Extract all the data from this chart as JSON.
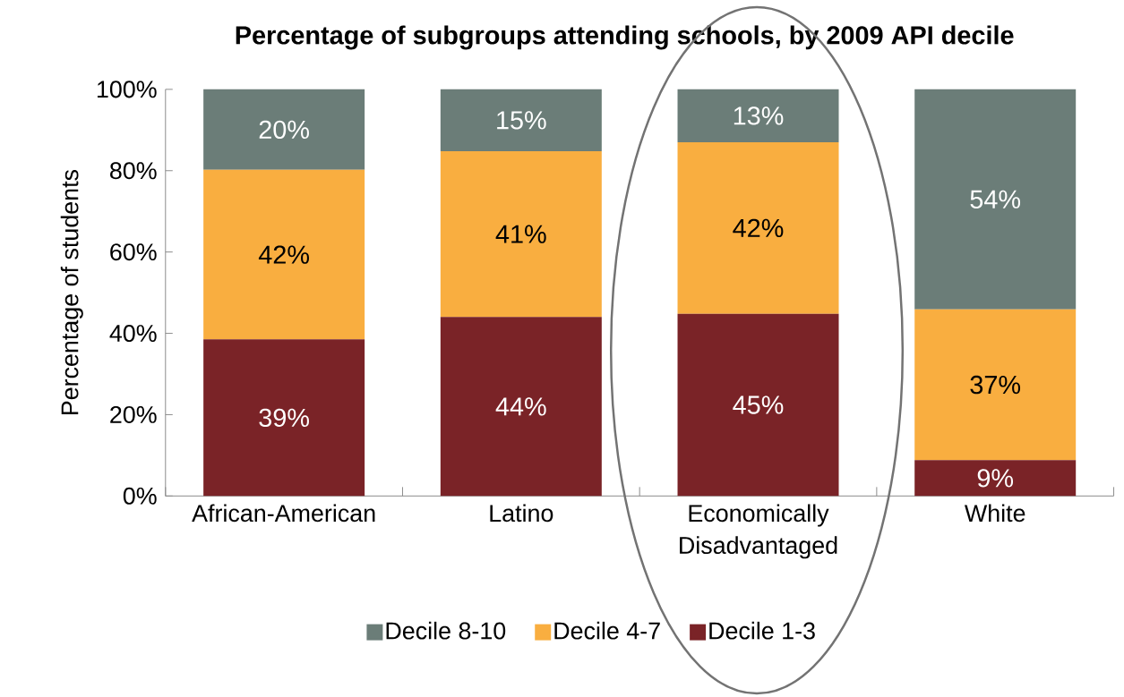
{
  "chart_data": {
    "type": "bar",
    "title": "Percentage of subgroups attending schools, by 2009 API decile",
    "ylabel": "Percentage of students",
    "categories": [
      "African-American",
      "Latino",
      "Economically Disadvantaged",
      "White"
    ],
    "stacked": true,
    "legend": "bottom",
    "ylim": [
      0,
      100
    ],
    "yticks": [
      {
        "value": 0,
        "label": "0%"
      },
      {
        "value": 20,
        "label": "20%"
      },
      {
        "value": 40,
        "label": "40%"
      },
      {
        "value": 60,
        "label": "60%"
      },
      {
        "value": 80,
        "label": "80%"
      },
      {
        "value": 100,
        "label": "100%"
      }
    ],
    "series": [
      {
        "name": "Decile 1-3",
        "color": "#7a2327",
        "values": [
          38.5,
          44.0,
          44.8,
          8.8
        ],
        "value_labels": [
          "39%",
          "44%",
          "45%",
          "9%"
        ]
      },
      {
        "name": "Decile 4-7",
        "color": "#f9ae40",
        "values": [
          41.7,
          40.8,
          42.2,
          37.1
        ],
        "value_labels": [
          "42%",
          "41%",
          "42%",
          "37%"
        ]
      },
      {
        "name": "Decile 8-10",
        "color": "#6b7d78",
        "values": [
          19.8,
          15.2,
          13.0,
          54.1
        ],
        "value_labels": [
          "20%",
          "15%",
          "13%",
          "54%"
        ]
      }
    ]
  }
}
